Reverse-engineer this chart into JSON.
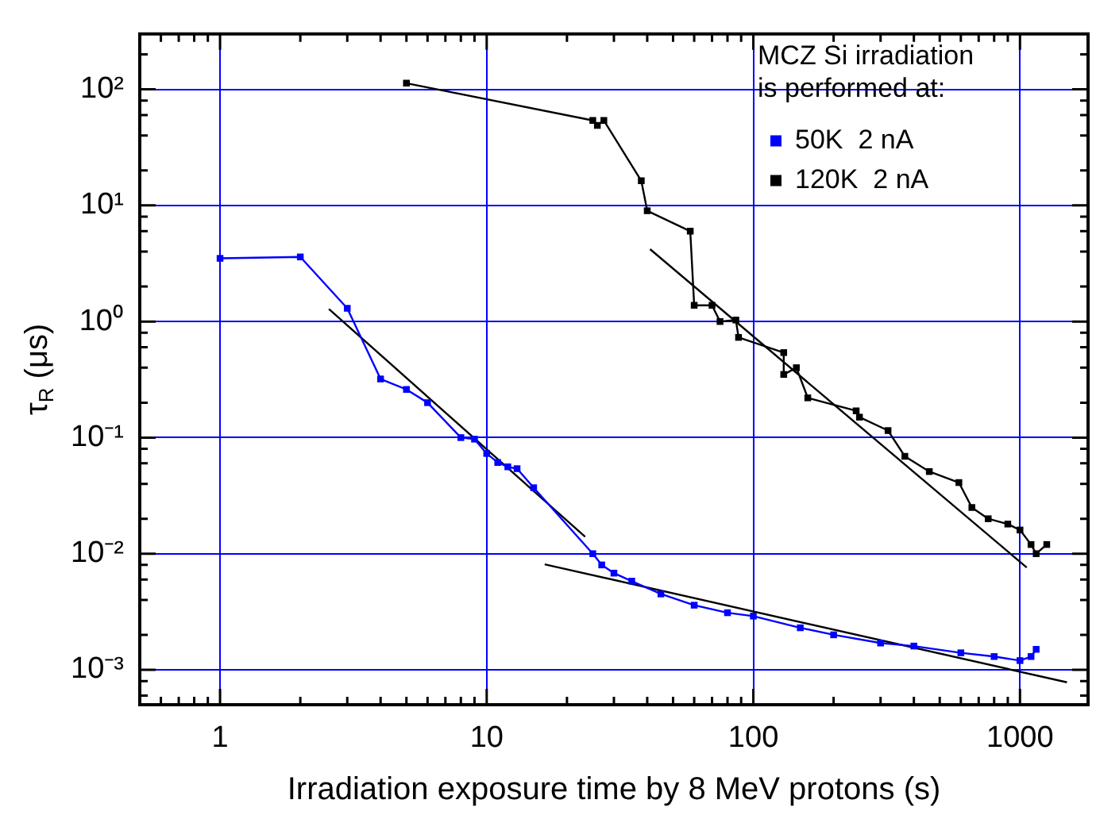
{
  "chart_data": {
    "type": "line",
    "xlabel": "Irradiation exposure time by 8 MeV protons (s)",
    "ylabel": "τ$_{R}$ (μs)",
    "legend_title": "MCZ Si irradiation is performed at:",
    "legend": "top right",
    "log": "xy",
    "grid": true,
    "marker": "square",
    "line_style": "solid",
    "xlim": [
      0.5,
      1800
    ],
    "ylim": [
      0.0005,
      300
    ],
    "xticks": [
      {
        "value": 0.6,
        "label": null
      },
      {
        "value": 0.7,
        "label": null
      },
      {
        "value": 0.8,
        "label": null
      },
      {
        "value": 0.9,
        "label": null
      },
      1,
      {
        "value": 2,
        "label": null
      },
      {
        "value": 3,
        "label": null
      },
      {
        "value": 4,
        "label": null
      },
      {
        "value": 5,
        "label": null
      },
      {
        "value": 6,
        "label": null
      },
      {
        "value": 7,
        "label": null
      },
      {
        "value": 8,
        "label": null
      },
      {
        "value": 9,
        "label": null
      },
      10,
      {
        "value": 20,
        "label": null
      },
      {
        "value": 30,
        "label": null
      },
      {
        "value": 40,
        "label": null
      },
      {
        "value": 50,
        "label": null
      },
      {
        "value": 60,
        "label": null
      },
      {
        "value": 70,
        "label": null
      },
      {
        "value": 80,
        "label": null
      },
      {
        "value": 90,
        "label": null
      },
      100,
      {
        "value": 200,
        "label": null
      },
      {
        "value": 300,
        "label": null
      },
      {
        "value": 400,
        "label": null
      },
      {
        "value": 500,
        "label": null
      },
      {
        "value": 600,
        "label": null
      },
      {
        "value": 700,
        "label": null
      },
      {
        "value": 800,
        "label": null
      },
      {
        "value": 900,
        "label": null
      },
      1000
    ],
    "yticks": [
      {
        "value": 0.0006,
        "label": null
      },
      {
        "value": 0.0008,
        "label": null
      },
      {
        "value": 0.001,
        "label": "10⁻³"
      },
      {
        "value": 0.002,
        "label": null
      },
      {
        "value": 0.004,
        "label": null
      },
      {
        "value": 0.006,
        "label": null
      },
      {
        "value": 0.008,
        "label": null
      },
      {
        "value": 0.01,
        "label": "10⁻²"
      },
      {
        "value": 0.02,
        "label": null
      },
      {
        "value": 0.04,
        "label": null
      },
      {
        "value": 0.06,
        "label": null
      },
      {
        "value": 0.08,
        "label": null
      },
      {
        "value": 0.1,
        "label": "10⁻¹"
      },
      {
        "value": 0.2,
        "label": null
      },
      {
        "value": 0.4,
        "label": null
      },
      {
        "value": 0.6,
        "label": null
      },
      {
        "value": 0.8,
        "label": null
      },
      {
        "value": 1,
        "label": "10⁰"
      },
      {
        "value": 2,
        "label": null
      },
      {
        "value": 4,
        "label": null
      },
      {
        "value": 6,
        "label": null
      },
      {
        "value": 8,
        "label": null
      },
      {
        "value": 10,
        "label": "10¹"
      },
      {
        "value": 20,
        "label": null
      },
      {
        "value": 40,
        "label": null
      },
      {
        "value": 60,
        "label": null
      },
      {
        "value": 80,
        "label": null
      },
      {
        "value": 100,
        "label": "10²"
      },
      {
        "value": 200,
        "label": null
      }
    ],
    "series": [
      {
        "name": "50K  2 nA",
        "color": "#0000ff",
        "x": [
          1,
          2,
          3,
          4,
          5,
          6,
          8,
          9,
          10,
          11,
          12,
          13,
          15,
          25,
          27,
          30,
          35,
          45,
          60,
          80,
          100,
          150,
          200,
          300,
          400,
          600,
          800,
          1000,
          1100,
          1150
        ],
        "values": [
          3.5,
          3.6,
          1.3,
          0.32,
          0.26,
          0.2,
          0.1,
          0.097,
          0.073,
          0.061,
          0.056,
          0.054,
          0.037,
          0.01,
          0.008,
          0.0068,
          0.0058,
          0.0045,
          0.0036,
          0.0031,
          0.0029,
          0.0023,
          0.002,
          0.0017,
          0.0016,
          0.0014,
          0.0013,
          0.0012,
          0.0013,
          0.0015
        ]
      },
      {
        "name": "120K  2 nA",
        "color": "#000000",
        "x": [
          5,
          25,
          26,
          27.5,
          38,
          40,
          58,
          60,
          70,
          75,
          86,
          88,
          130,
          130,
          145,
          160,
          243,
          250,
          320,
          370,
          457,
          590,
          660,
          760,
          900,
          1000,
          1100,
          1150,
          1260
        ],
        "values": [
          113,
          54,
          49,
          54,
          16.3,
          9,
          6,
          1.38,
          1.38,
          1.0,
          1.03,
          0.73,
          0.54,
          0.35,
          0.4,
          0.22,
          0.17,
          0.15,
          0.115,
          0.069,
          0.051,
          0.041,
          0.025,
          0.02,
          0.018,
          0.016,
          0.012,
          0.01,
          0.012
        ]
      },
      {
        "type": "line",
        "marker": "none",
        "color": "#000000",
        "x": [
          2.56,
          23.4
        ],
        "values": [
          1.28,
          0.014
        ]
      },
      {
        "type": "line",
        "marker": "none",
        "color": "#000000",
        "x": [
          16.5,
          1500
        ],
        "values": [
          0.0081,
          0.00078
        ]
      },
      {
        "type": "line",
        "marker": "none",
        "color": "#000000",
        "x": [
          41,
          1060
        ],
        "values": [
          4.2,
          0.0076
        ]
      }
    ]
  }
}
